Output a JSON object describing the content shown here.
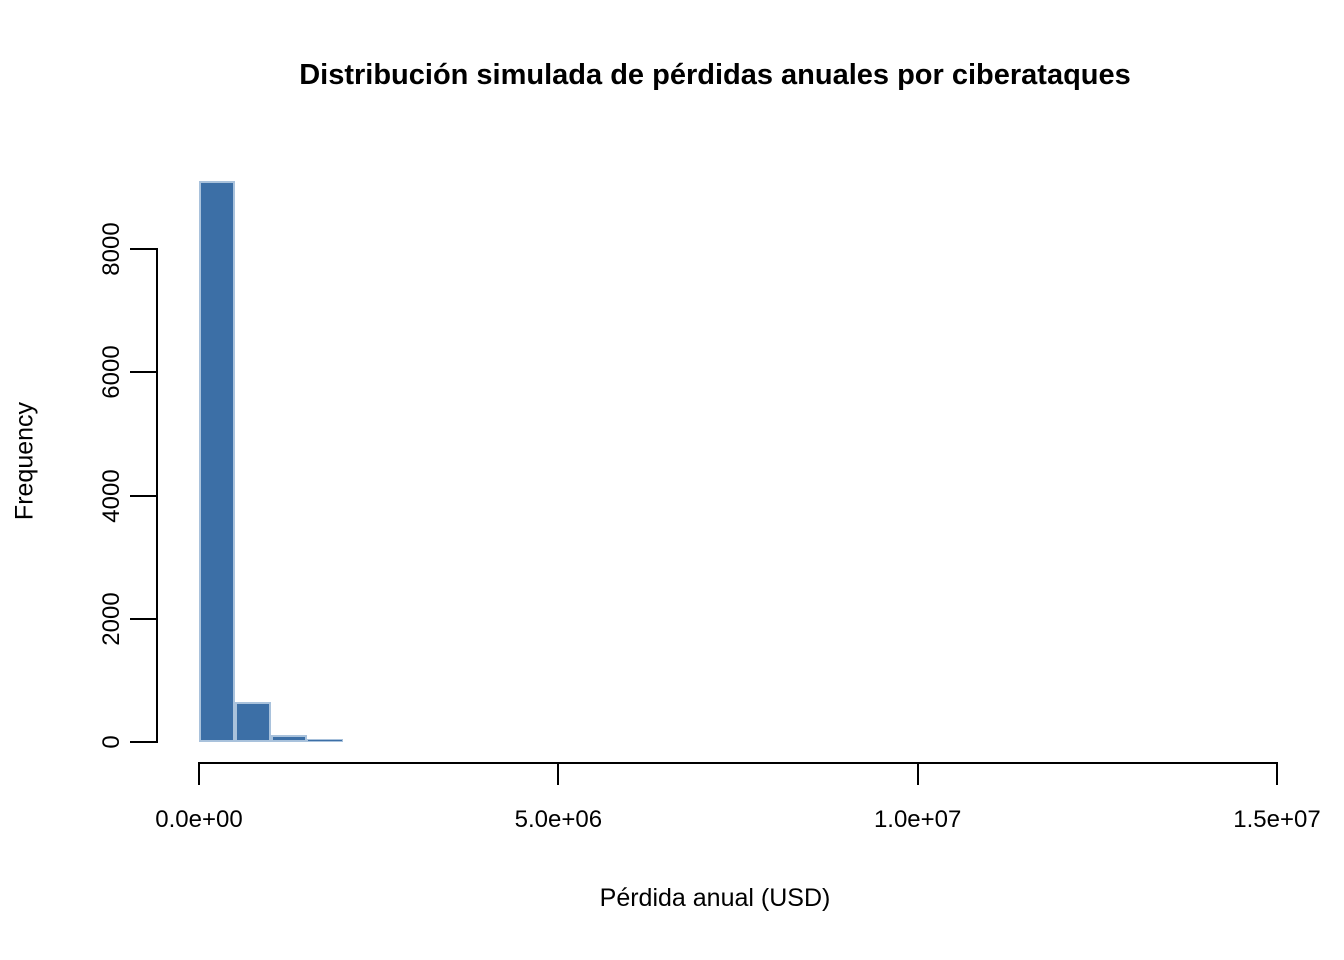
{
  "chart_data": {
    "type": "bar",
    "subtype": "histogram",
    "title": "Distribución simulada de pérdidas anuales por ciberataques",
    "xlabel": "Pérdida anual (USD)",
    "ylabel": "Frequency",
    "xlim": [
      0,
      15000000
    ],
    "ylim": [
      0,
      9100
    ],
    "grid": false,
    "x_ticks": [
      {
        "value": 0,
        "label": "0.0e+00"
      },
      {
        "value": 5000000,
        "label": "5.0e+06"
      },
      {
        "value": 10000000,
        "label": "1.0e+07"
      },
      {
        "value": 15000000,
        "label": "1.5e+07"
      }
    ],
    "y_ticks": [
      {
        "value": 0,
        "label": "0"
      },
      {
        "value": 2000,
        "label": "2000"
      },
      {
        "value": 4000,
        "label": "4000"
      },
      {
        "value": 6000,
        "label": "6000"
      },
      {
        "value": 8000,
        "label": "8000"
      }
    ],
    "bin_width": 500000,
    "bins": [
      {
        "x0": 0,
        "x1": 500000,
        "count": 9100
      },
      {
        "x0": 500000,
        "x1": 1000000,
        "count": 650
      },
      {
        "x0": 1000000,
        "x1": 1500000,
        "count": 110
      },
      {
        "x0": 1500000,
        "x1": 2000000,
        "count": 45
      }
    ],
    "colors": {
      "bar_fill": "#3C6FA6",
      "bar_border": "#A9C2DC",
      "axis": "#000000",
      "text": "#000000",
      "background": "#FFFFFF"
    }
  }
}
